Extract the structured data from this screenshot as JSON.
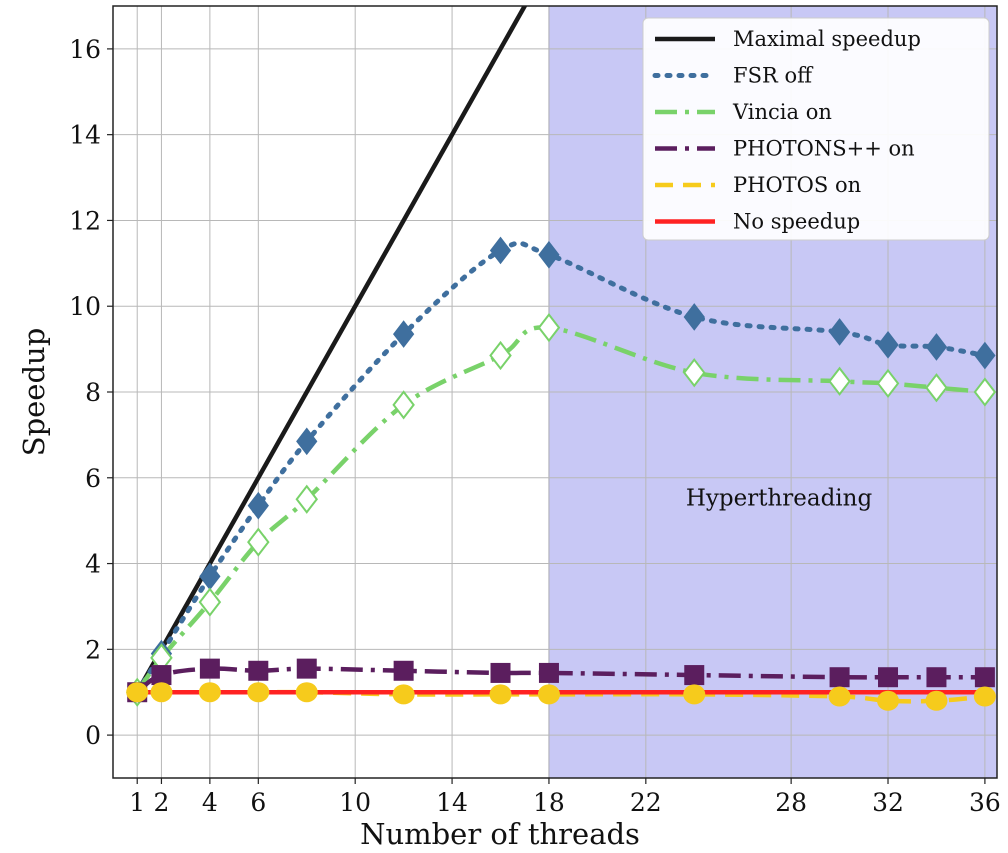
{
  "chart_data": {
    "type": "line",
    "xlabel": "Number of threads",
    "ylabel": "Speedup",
    "xlim": [
      0,
      36.5
    ],
    "ylim": [
      -1,
      17
    ],
    "xticks": [
      1,
      2,
      4,
      6,
      10,
      14,
      18,
      22,
      28,
      32,
      36
    ],
    "xtick_labels": [
      "1",
      "2",
      "4",
      "6",
      "10",
      "14",
      "18",
      "22",
      "28",
      "32",
      "36"
    ],
    "yticks": [
      0,
      2,
      4,
      6,
      8,
      10,
      12,
      14,
      16
    ],
    "ytick_labels": [
      "0",
      "2",
      "4",
      "6",
      "8",
      "10",
      "12",
      "14",
      "16"
    ],
    "grid": true,
    "legend_position": "top-right",
    "shaded_region": {
      "x_from": 18,
      "x_to": 36.5,
      "color": "#c8c8f5",
      "label": "Hyperthreading"
    },
    "series": [
      {
        "name": "Maximal speedup",
        "color": "#1a1a1a",
        "style": "solid",
        "marker": "none",
        "x": [
          1,
          17.2
        ],
        "y": [
          1,
          17.2
        ]
      },
      {
        "name": "FSR off",
        "color": "#3f6f9e",
        "style": "dotted",
        "marker": "diamond-filled",
        "x": [
          1,
          2,
          4,
          6,
          8,
          12,
          16,
          18,
          24,
          30,
          32,
          34,
          36
        ],
        "y": [
          1.0,
          1.9,
          3.7,
          5.35,
          6.85,
          9.35,
          11.3,
          11.2,
          9.75,
          9.4,
          9.1,
          9.05,
          8.85
        ]
      },
      {
        "name": "Vincia on",
        "color": "#79d26a",
        "style": "dashdot",
        "marker": "diamond-open",
        "x": [
          1,
          2,
          4,
          6,
          8,
          12,
          16,
          18,
          24,
          30,
          32,
          34,
          36
        ],
        "y": [
          1.0,
          1.8,
          3.1,
          4.5,
          5.5,
          7.7,
          8.85,
          9.5,
          8.45,
          8.25,
          8.2,
          8.1,
          8.0
        ]
      },
      {
        "name": "PHOTONS++ on",
        "color": "#5b1e5e",
        "style": "dashdot",
        "marker": "square-filled",
        "x": [
          1,
          2,
          4,
          6,
          8,
          12,
          16,
          18,
          24,
          30,
          32,
          34,
          36
        ],
        "y": [
          1.0,
          1.4,
          1.55,
          1.5,
          1.55,
          1.5,
          1.45,
          1.45,
          1.4,
          1.35,
          1.35,
          1.35,
          1.35
        ]
      },
      {
        "name": "PHOTOS on",
        "color": "#f6cb1c",
        "style": "dashed",
        "marker": "circle-filled",
        "x": [
          1,
          2,
          4,
          6,
          8,
          12,
          16,
          18,
          24,
          30,
          32,
          34,
          36
        ],
        "y": [
          1.0,
          1.0,
          1.0,
          1.0,
          1.0,
          0.95,
          0.95,
          0.95,
          0.95,
          0.9,
          0.8,
          0.8,
          0.9
        ]
      },
      {
        "name": "No speedup",
        "color": "#ff2222",
        "style": "solid",
        "marker": "none",
        "x": [
          1,
          36
        ],
        "y": [
          1,
          1
        ]
      }
    ]
  }
}
